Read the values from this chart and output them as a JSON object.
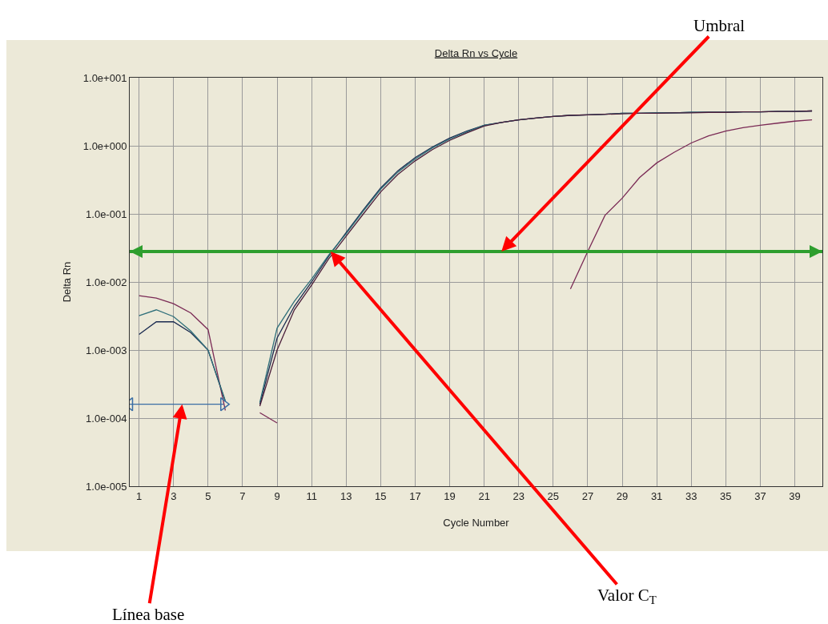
{
  "chart_data": {
    "type": "line",
    "title": "Delta Rn vs Cycle",
    "xlabel": "Cycle Number",
    "ylabel": "Delta Rn",
    "xlim": [
      0.46,
      40.6
    ],
    "xticks": [
      1,
      3,
      5,
      7,
      9,
      11,
      13,
      15,
      17,
      19,
      21,
      23,
      25,
      27,
      29,
      31,
      33,
      35,
      37,
      39
    ],
    "ylim": [
      1e-05,
      10
    ],
    "yticks": [
      {
        "value": 1e-05,
        "label": "1.0e-005"
      },
      {
        "value": 0.0001,
        "label": "1.0e-004"
      },
      {
        "value": 0.001,
        "label": "1.0e-003"
      },
      {
        "value": 0.01,
        "label": "1.0e-002"
      },
      {
        "value": 0.1,
        "label": "1.0e-001"
      },
      {
        "value": 1,
        "label": "1.0e+000"
      },
      {
        "value": 10,
        "label": "1.0e+001"
      }
    ],
    "log": "y",
    "grid": true,
    "marker": "none",
    "line_style": "solid",
    "series": [
      {
        "color": "#7a2a55",
        "x": [
          1,
          2,
          3,
          4,
          5,
          6,
          7,
          8,
          9,
          10,
          26,
          27,
          28,
          29,
          30,
          31,
          32,
          33,
          34,
          35,
          36,
          37,
          38,
          39,
          40
        ],
        "values": [
          0.0063,
          0.0058,
          0.0048,
          0.0035,
          0.002,
          0.00013,
          null,
          0.00012,
          8.5e-05,
          null,
          0.0079,
          0.028,
          0.095,
          0.17,
          0.34,
          0.56,
          0.8,
          1.1,
          1.4,
          1.65,
          1.85,
          2.0,
          2.15,
          2.3,
          2.4
        ]
      },
      {
        "color": "#1a2a50",
        "x": [
          1,
          2,
          3,
          4,
          5,
          6,
          7,
          8,
          9,
          10,
          11,
          12,
          13,
          14,
          15,
          16,
          17,
          18,
          19,
          20,
          21,
          22,
          23,
          24,
          25,
          26,
          27,
          28,
          29,
          30,
          31,
          32,
          33,
          34,
          35,
          36,
          37,
          38,
          39,
          40
        ],
        "values": [
          0.0017,
          0.0026,
          0.0026,
          0.0018,
          0.001,
          0.000175,
          null,
          0.00016,
          0.0015,
          0.0044,
          0.01,
          0.024,
          0.053,
          0.115,
          0.24,
          0.43,
          0.67,
          0.96,
          1.3,
          1.65,
          2.0,
          2.2,
          2.4,
          2.55,
          2.7,
          2.8,
          2.85,
          2.9,
          3.0,
          3.0,
          3.05,
          3.05,
          3.1,
          3.1,
          3.1,
          3.15,
          3.15,
          3.2,
          3.2,
          3.25
        ]
      },
      {
        "color": "#2f6f7a",
        "x": [
          1,
          2,
          3,
          4,
          5,
          6,
          7,
          8,
          9,
          10,
          11,
          12,
          13,
          14,
          15,
          16,
          17,
          18,
          19,
          20,
          21,
          22,
          23,
          24,
          25,
          26,
          27,
          28,
          29,
          30,
          31,
          32,
          33,
          34,
          35,
          36,
          37,
          38,
          39,
          40
        ],
        "values": [
          0.0032,
          0.0039,
          0.0031,
          0.0019,
          0.001,
          0.00018,
          null,
          0.00017,
          0.0021,
          0.0052,
          0.011,
          0.025,
          0.051,
          0.11,
          0.23,
          0.41,
          0.64,
          0.93,
          1.25,
          1.6,
          2.0,
          2.2,
          2.4,
          2.55,
          2.7,
          2.8,
          2.85,
          2.9,
          3.0,
          3.0,
          3.05,
          3.05,
          3.1,
          3.1,
          3.1,
          3.15,
          3.15,
          3.2,
          3.2,
          3.25
        ]
      },
      {
        "color": "#4a1e3a",
        "x": [
          8,
          9,
          10,
          11,
          12,
          13,
          14,
          15,
          16,
          17,
          18,
          19,
          20,
          21,
          22,
          23,
          24,
          25,
          26,
          27,
          28,
          29,
          30,
          31,
          32,
          33,
          34,
          35,
          36,
          37,
          38,
          39,
          40
        ],
        "values": [
          0.00015,
          0.001,
          0.0039,
          0.009,
          0.022,
          0.047,
          0.1,
          0.21,
          0.38,
          0.6,
          0.88,
          1.2,
          1.55,
          1.95,
          2.2,
          2.4,
          2.55,
          2.7,
          2.8,
          2.85,
          2.9,
          2.95,
          3.0,
          3.0,
          3.05,
          3.05,
          3.1,
          3.1,
          3.15,
          3.15,
          3.2,
          3.2,
          3.25
        ]
      },
      {
        "type": "line",
        "color": "#3a6ea5",
        "marker": "triangle",
        "x": [
          0.46,
          5.9
        ],
        "values": [
          0.00016,
          0.00016
        ]
      }
    ],
    "ref_lines": [
      {
        "axis": "y",
        "value": 0.028,
        "color": "#2e9e2e"
      }
    ],
    "annotations": [
      {
        "text": "Umbral",
        "x": 22,
        "y": 0.028
      },
      {
        "text": "Valor C$_{T}$",
        "x": 12.1,
        "y": 0.028
      },
      {
        "text": "Línea base",
        "x": 3.5,
        "y": 0.00016
      }
    ]
  }
}
